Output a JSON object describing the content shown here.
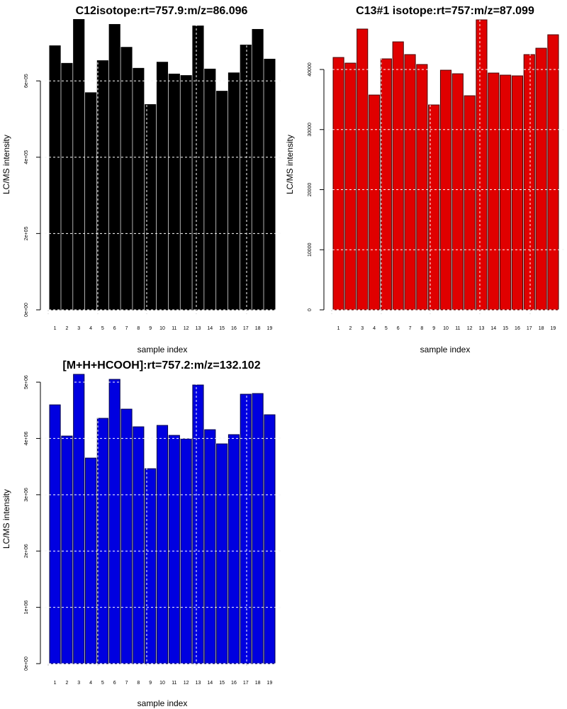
{
  "chart_data": [
    {
      "type": "bar",
      "title": "C12isotope:rt=757.9:m/z=86.096",
      "xlabel": "sample index",
      "ylabel": "LC/MS intensity",
      "categories": [
        "1",
        "2",
        "3",
        "4",
        "5",
        "6",
        "7",
        "8",
        "9",
        "10",
        "11",
        "12",
        "13",
        "14",
        "15",
        "16",
        "17",
        "18",
        "19"
      ],
      "values": [
        692000,
        646000,
        761000,
        569000,
        653000,
        748000,
        688000,
        633000,
        538000,
        649000,
        618000,
        614000,
        744000,
        631000,
        573000,
        621000,
        694000,
        735000,
        657000
      ],
      "yticks": [
        0,
        200000,
        400000,
        600000
      ],
      "ytick_labels": [
        "0e+00",
        "2e+05",
        "4e+05",
        "6e+05"
      ],
      "ylim": [
        0,
        760000
      ],
      "grid": true,
      "bar_color": "#000000",
      "bar_border": "#000000",
      "legend": "none"
    },
    {
      "type": "bar",
      "title": "C13#1 isotope:rt=757:m/z=87.099",
      "xlabel": "sample index",
      "ylabel": "LC/MS intensity",
      "categories": [
        "1",
        "2",
        "3",
        "4",
        "5",
        "6",
        "7",
        "8",
        "9",
        "10",
        "11",
        "12",
        "13",
        "14",
        "15",
        "16",
        "17",
        "18",
        "19"
      ],
      "values": [
        42000,
        41060,
        46730,
        35750,
        41770,
        44600,
        42480,
        40830,
        34100,
        39880,
        39290,
        35630,
        48260,
        39410,
        39060,
        38940,
        42480,
        43540,
        45780
      ],
      "yticks": [
        0,
        10000,
        20000,
        30000,
        40000
      ],
      "ytick_labels": [
        "0",
        "10000",
        "20000",
        "30000",
        "40000"
      ],
      "ylim": [
        0,
        48260
      ],
      "grid": true,
      "bar_color": "#e00000",
      "bar_border": "#4a0000",
      "legend": "none"
    },
    {
      "type": "bar",
      "title": "[M+H+HCOOH]:rt=757.2:m/z=132.102",
      "xlabel": "sample index",
      "ylabel": "LC/MS intensity",
      "categories": [
        "1",
        "2",
        "3",
        "4",
        "5",
        "6",
        "7",
        "8",
        "9",
        "10",
        "11",
        "12",
        "13",
        "14",
        "15",
        "16",
        "17",
        "18",
        "19"
      ],
      "values": [
        4597000,
        4043000,
        5139000,
        3652000,
        4358000,
        5050000,
        4521000,
        4207000,
        3463000,
        4232000,
        4055000,
        3992000,
        4950000,
        4156000,
        3904000,
        4068000,
        4786000,
        4798000,
        4421000
      ],
      "yticks": [
        0,
        1000000,
        2000000,
        3000000,
        4000000,
        5000000
      ],
      "ytick_labels": [
        "0e+00",
        "1e+06",
        "2e+06",
        "3e+06",
        "4e+06",
        "5e+06"
      ],
      "ylim": [
        0,
        5139000
      ],
      "grid": true,
      "bar_color": "#0000e0",
      "bar_border": "#00004a",
      "legend": "none"
    }
  ]
}
